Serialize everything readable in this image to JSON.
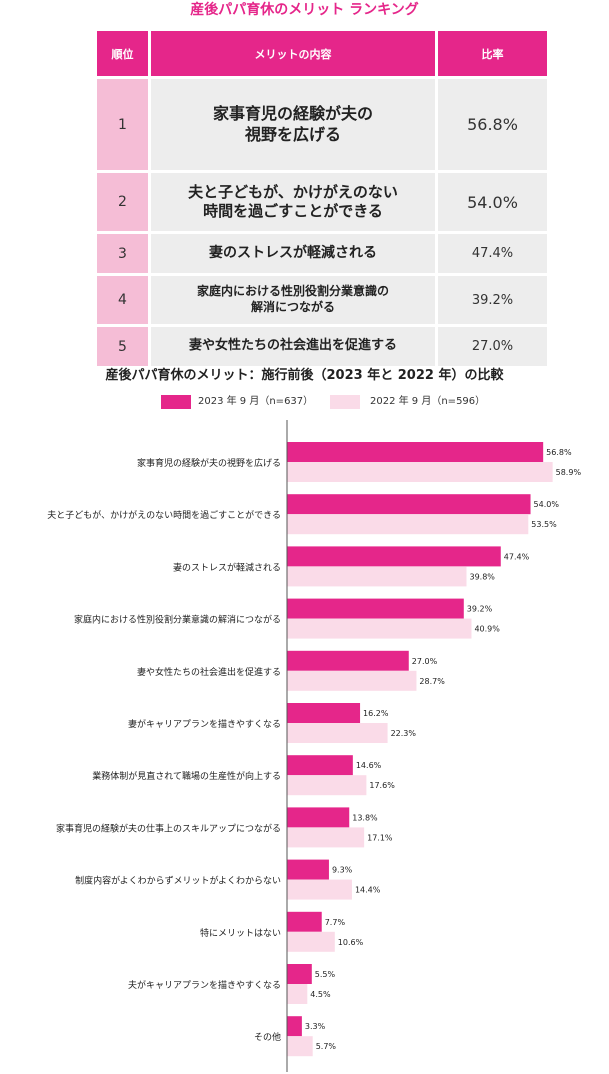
{
  "ranking": {
    "title": "産後パパ育休のメリット ランキング",
    "headers": {
      "rank": "順位",
      "content": "メリットの内容",
      "rate": "比率"
    },
    "rows": [
      {
        "rank": "1",
        "content": "家事育児の経験が夫の\n視野を広げる",
        "rate": "56.8%"
      },
      {
        "rank": "2",
        "content": "夫と子どもが、かけがえのない\n時間を過ごすことができる",
        "rate": "54.0%"
      },
      {
        "rank": "3",
        "content": "妻のストレスが軽減される",
        "rate": "47.4%"
      },
      {
        "rank": "4",
        "content": "家庭内における性別役割分業意識の\n解消につながる",
        "rate": "39.2%"
      },
      {
        "rank": "5",
        "content": "妻や女性たちの社会進出を促進する",
        "rate": "27.0%"
      }
    ]
  },
  "colors": {
    "accent": "#e5268a",
    "light": "#fadbe8",
    "rank_bg": "#f5bdd6",
    "cell_bg": "#ededed"
  },
  "chart_data": {
    "type": "bar",
    "orientation": "horizontal",
    "title": "産後パパ育休のメリット：施行前後（2023 年と 2022 年）の比較",
    "legend": [
      "2023 年 9 月（n=637）",
      "2022 年 9 月（n=596）"
    ],
    "legend_placement": "top",
    "categories": [
      "家事育児の経験が夫の視野を広げる",
      "夫と子どもが、かけがえのない時間を過ごすことができる",
      "妻のストレスが軽減される",
      "家庭内における性別役割分業意識の解消につながる",
      "妻や女性たちの社会進出を促進する",
      "妻がキャリアプランを描きやすくなる",
      "業務体制が見直されて職場の生産性が向上する",
      "家事育児の経験が夫の仕事上のスキルアップにつながる",
      "制度内容がよくわからずメリットがよくわからない",
      "特にメリットはない",
      "夫がキャリアプランを描きやすくなる",
      "その他"
    ],
    "series": [
      {
        "name": "2023 年 9 月（n=637）",
        "color": "#e5268a",
        "values": [
          56.8,
          54.0,
          47.4,
          39.2,
          27.0,
          16.2,
          14.6,
          13.8,
          9.3,
          7.7,
          5.5,
          3.3
        ]
      },
      {
        "name": "2022 年 9 月（n=596）",
        "color": "#fadbe8",
        "values": [
          58.9,
          53.5,
          39.8,
          40.9,
          28.7,
          22.3,
          17.6,
          17.1,
          14.4,
          10.6,
          4.5,
          5.7
        ]
      }
    ],
    "unit": "%",
    "xlim": [
      0,
      60
    ],
    "grid": false
  }
}
